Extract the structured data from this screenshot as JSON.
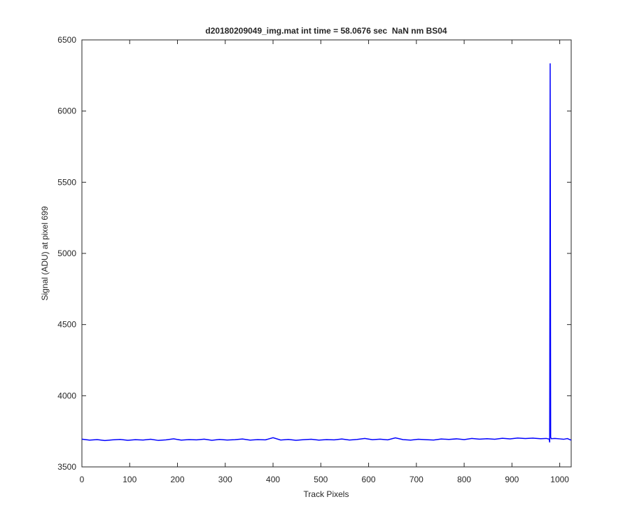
{
  "chart_data": {
    "type": "line",
    "title": "d20180209049_img.mat int time = 58.0676 sec  NaN nm BS04",
    "x_label": "Track Pixels",
    "y_label": "Signal (ADU) at pixel 699",
    "color": "#0000ff",
    "x": [
      0,
      16,
      32,
      48,
      64,
      80,
      96,
      112,
      128,
      144,
      160,
      176,
      192,
      208,
      224,
      240,
      256,
      272,
      288,
      304,
      320,
      336,
      352,
      368,
      384,
      400,
      416,
      432,
      448,
      464,
      480,
      496,
      512,
      528,
      544,
      560,
      576,
      592,
      608,
      624,
      640,
      656,
      672,
      688,
      704,
      720,
      736,
      752,
      768,
      784,
      800,
      816,
      832,
      848,
      864,
      880,
      896,
      912,
      928,
      944,
      960,
      972,
      978,
      979,
      980,
      981,
      982,
      990,
      1000,
      1008,
      1016,
      1024
    ],
    "values": [
      3695,
      3688,
      3692,
      3685,
      3690,
      3693,
      3687,
      3691,
      3689,
      3694,
      3686,
      3690,
      3697,
      3688,
      3692,
      3690,
      3695,
      3687,
      3693,
      3689,
      3691,
      3696,
      3688,
      3692,
      3690,
      3705,
      3689,
      3693,
      3687,
      3691,
      3694,
      3688,
      3692,
      3690,
      3696,
      3689,
      3693,
      3700,
      3691,
      3695,
      3690,
      3704,
      3692,
      3688,
      3694,
      3691,
      3689,
      3696,
      3693,
      3697,
      3692,
      3700,
      3695,
      3698,
      3694,
      3701,
      3697,
      3703,
      3699,
      3702,
      3698,
      3700,
      3695,
      3672,
      6335,
      3710,
      3698,
      3700,
      3697,
      3694,
      3699,
      3688
    ],
    "xlim": [
      0,
      1024
    ],
    "ylim": [
      3500,
      6500
    ],
    "xticks": [
      0,
      100,
      200,
      300,
      400,
      500,
      600,
      700,
      800,
      900,
      1000
    ],
    "yticks": [
      3500,
      4000,
      4500,
      5000,
      5500,
      6000,
      6500
    ],
    "grid": false
  }
}
